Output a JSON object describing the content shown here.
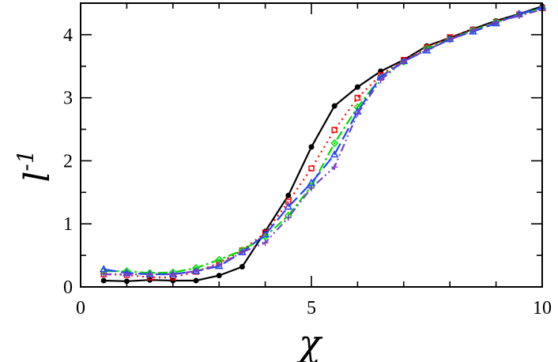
{
  "chart_data": {
    "type": "line",
    "title": "",
    "xlabel": "χ",
    "ylabel": "l",
    "ylabel_superscript": "-1",
    "xlim": [
      0,
      10
    ],
    "ylim": [
      0,
      4.5
    ],
    "xticks": [
      0,
      5,
      10
    ],
    "yticks": [
      0,
      1,
      2,
      3,
      4
    ],
    "xtick_labels": [
      "0",
      "5",
      "10"
    ],
    "ytick_labels": [
      "0",
      "1",
      "2",
      "3",
      "4"
    ],
    "grid": false,
    "legend": "none",
    "x": [
      0.5,
      1.0,
      1.5,
      2.0,
      2.5,
      3.0,
      3.5,
      4.0,
      4.5,
      5.0,
      5.5,
      6.0,
      6.5,
      7.0,
      7.5,
      8.0,
      8.5,
      9.0,
      9.5,
      10.0
    ],
    "series": [
      {
        "color": "#000000",
        "dash": "solid",
        "marker": "circle",
        "values": [
          0.1,
          0.09,
          0.11,
          0.1,
          0.1,
          0.18,
          0.32,
          0.88,
          1.45,
          2.22,
          2.87,
          3.17,
          3.42,
          3.6,
          3.82,
          3.95,
          4.09,
          4.22,
          4.33,
          4.45
        ]
      },
      {
        "color": "#ff0000",
        "dash": "dotted",
        "marker": "square",
        "values": [
          0.2,
          0.19,
          0.15,
          0.15,
          0.24,
          0.38,
          0.58,
          0.86,
          1.35,
          1.88,
          2.49,
          3.0,
          3.36,
          3.6,
          3.8,
          3.96,
          4.08,
          4.2,
          4.32,
          4.42
        ]
      },
      {
        "color": "#00dd00",
        "dash": "dashdot",
        "marker": "diamond",
        "values": [
          0.25,
          0.25,
          0.22,
          0.23,
          0.3,
          0.43,
          0.58,
          0.8,
          1.13,
          1.6,
          2.28,
          2.85,
          3.32,
          3.57,
          3.78,
          3.93,
          4.07,
          4.2,
          4.32,
          4.42
        ]
      },
      {
        "color": "#2244ff",
        "dash": "longdash",
        "marker": "triangle",
        "values": [
          0.28,
          0.22,
          0.2,
          0.2,
          0.25,
          0.33,
          0.55,
          0.83,
          1.27,
          1.65,
          2.1,
          2.78,
          3.33,
          3.58,
          3.75,
          3.93,
          4.05,
          4.18,
          4.33,
          4.43
        ]
      },
      {
        "color": "#7a3fc4",
        "dash": "dashdotdot",
        "marker": "plus",
        "values": [
          0.2,
          0.2,
          0.2,
          0.2,
          0.25,
          0.35,
          0.55,
          0.7,
          1.1,
          1.57,
          1.9,
          2.75,
          3.28,
          3.58,
          3.76,
          3.92,
          4.07,
          4.2,
          4.3,
          4.4
        ]
      }
    ]
  }
}
